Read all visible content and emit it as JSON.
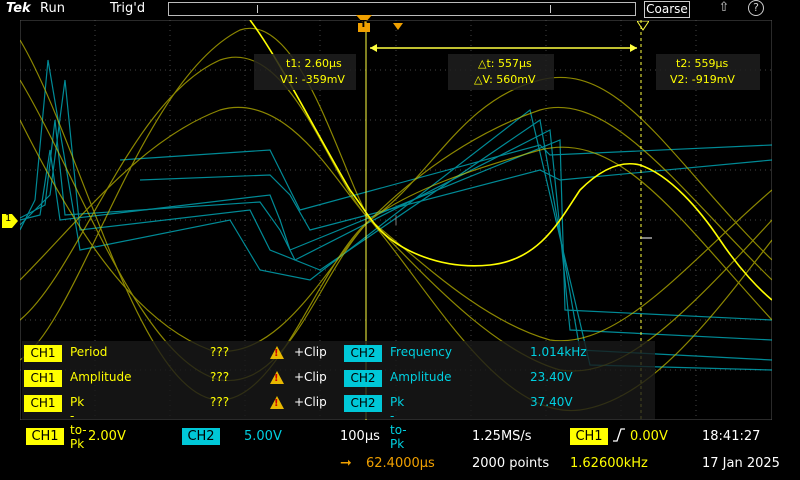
{
  "topbar": {
    "brand": "Tek",
    "run_status": "Run",
    "trigger_status": "Trig'd",
    "coarse_label": "Coarse"
  },
  "cursors": {
    "t1": "t1: 2.60µs",
    "v1": "V1: -359mV",
    "dt": "△t: 557µs",
    "dv": "△V: 560mV",
    "t2": "t2: 559µs",
    "v2": "V2: -919mV"
  },
  "measurements": [
    {
      "ch": "CH1",
      "name": "Period",
      "value": "???",
      "clip": "+Clip",
      "ch2": "CH2",
      "name2": "Frequency",
      "value2": "1.014kHz"
    },
    {
      "ch": "CH1",
      "name": "Amplitude",
      "value": "???",
      "clip": "+Clip",
      "ch2": "CH2",
      "name2": "Amplitude",
      "value2": "23.40V"
    },
    {
      "ch": "CH1",
      "name": "Pk -to- Pk",
      "value": "???",
      "clip": "+Clip",
      "ch2": "CH2",
      "name2": "Pk -to- Pk",
      "value2": "37.40V"
    }
  ],
  "bottom": {
    "ch1": "CH1",
    "ch1_scale": "2.00V",
    "ch2": "CH2",
    "ch2_scale": "5.00V",
    "timebase": "100µs",
    "sample_rate": "1.25MS/s",
    "trig_ch": "CH1",
    "trig_level": "0.00V",
    "time": "18:41:27",
    "position": "62.4000µs",
    "points": "2000 points",
    "trig_freq": "1.62600kHz",
    "date": "17 Jan 2025",
    "ch1_marker": "1",
    "trig_marker": "T"
  },
  "colors": {
    "ch1": "#ffff00",
    "ch2": "#00c8d8",
    "cursor": "#ffff40"
  }
}
